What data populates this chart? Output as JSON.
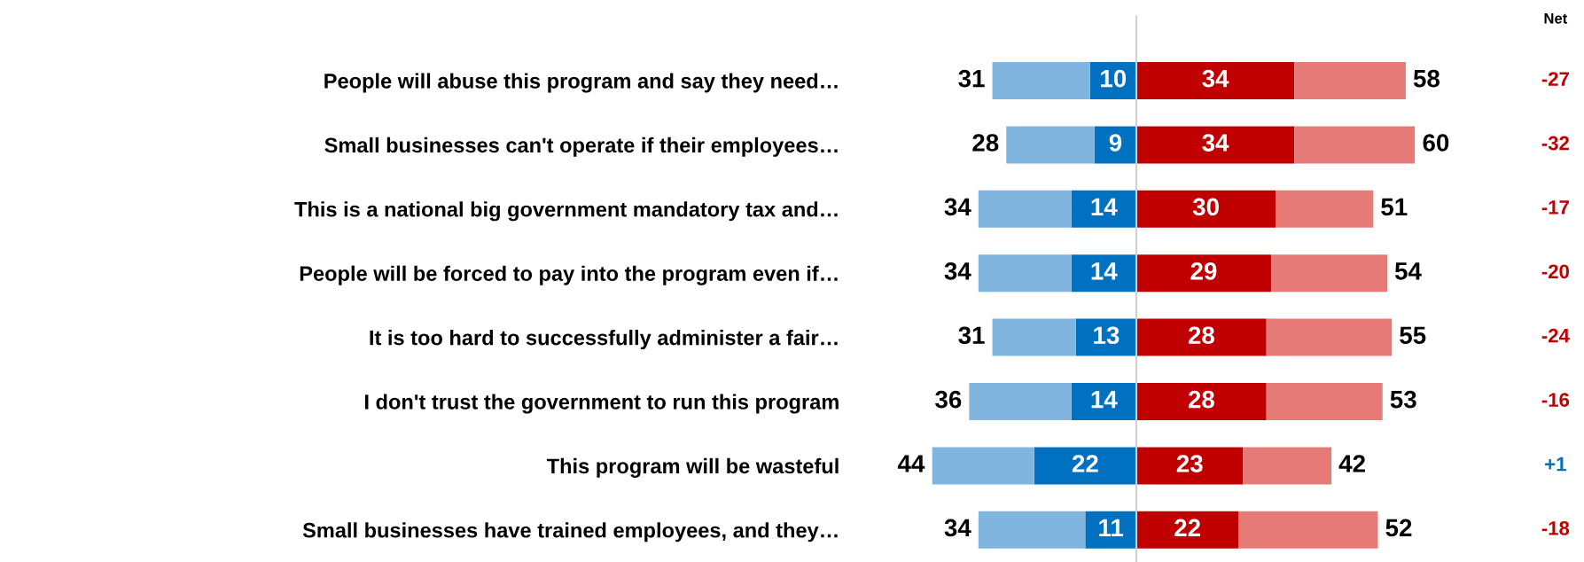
{
  "chart_data": [
    {
      "type": "bar",
      "orientation": "horizontal",
      "stacked": true,
      "tick_labels": "y",
      "legend": false,
      "grid": false,
      "xlim": [
        44,
        0
      ],
      "categories": [
        "People will abuse this program and say they need…",
        "Small businesses can't operate if their employees…",
        "This is a national big government mandatory tax and…",
        "People will be forced to pay into the program even if…",
        "It is too hard to successfully administer a fair…",
        "I don't trust the government to run this program",
        "This program will be wasteful",
        "Small businesses have trained employees, and they…"
      ],
      "series": [
        {
          "color": "#0070c0",
          "values": [
            10,
            9,
            14,
            14,
            13,
            14,
            22,
            11
          ],
          "value_labels": [
            "10",
            "9",
            "14",
            "14",
            "13",
            "14",
            "22",
            "11"
          ]
        },
        {
          "color": "#7fb5df",
          "values": [
            21,
            19,
            20,
            20,
            18,
            22,
            22,
            23
          ]
        }
      ],
      "totals": [
        "31",
        "28",
        "34",
        "34",
        "31",
        "36",
        "44",
        "34"
      ]
    },
    {
      "type": "bar",
      "orientation": "horizontal",
      "stacked": true,
      "tick_labels": false,
      "legend": false,
      "grid": false,
      "xlim": [
        0,
        60
      ],
      "categories": [
        null,
        null,
        null,
        null,
        null,
        null,
        null,
        null
      ],
      "series": [
        {
          "color": "#c00000",
          "values": [
            34,
            34,
            30,
            29,
            28,
            28,
            23,
            22
          ],
          "value_labels": [
            "34",
            "34",
            "30",
            "29",
            "28",
            "28",
            "23",
            "22"
          ]
        },
        {
          "color": "#e57a77",
          "values": [
            24,
            26,
            21,
            25,
            27,
            25,
            19,
            30
          ]
        }
      ],
      "totals": [
        "58",
        "60",
        "51",
        "54",
        "55",
        "53",
        "42",
        "52"
      ],
      "ref_lines": [
        {
          "axis": "x",
          "value": 0,
          "color": "#d0d0d0"
        }
      ],
      "annotations": [
        "Net",
        "-27",
        "-32",
        "-17",
        "-20",
        "-24",
        "-16",
        "+1",
        "-18"
      ]
    }
  ]
}
